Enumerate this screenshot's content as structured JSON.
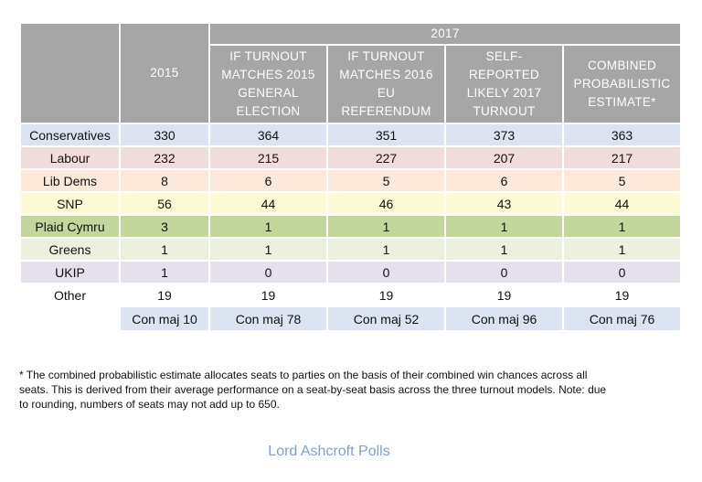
{
  "table": {
    "header": {
      "group": "2017",
      "columns": [
        "2015",
        "IF TURNOUT MATCHES 2015 GENERAL ELECTION",
        "IF TURNOUT MATCHES 2016 EU REFERENDUM",
        "SELF-REPORTED LIKELY 2017 TURNOUT",
        "COMBINED PROBABILISTIC ESTIMATE*"
      ]
    },
    "rows": [
      {
        "party": "Conservatives",
        "color": "#dbe4f0",
        "values": [
          330,
          364,
          351,
          373,
          363
        ]
      },
      {
        "party": "Labour",
        "color": "#f2dcdb",
        "values": [
          232,
          215,
          227,
          207,
          217
        ]
      },
      {
        "party": "Lib Dems",
        "color": "#fde9d9",
        "values": [
          8,
          6,
          5,
          6,
          5
        ]
      },
      {
        "party": "SNP",
        "color": "#fdfbd3",
        "values": [
          56,
          44,
          46,
          43,
          44
        ]
      },
      {
        "party": "Plaid Cymru",
        "color": "#c3d69b",
        "values": [
          3,
          1,
          1,
          1,
          1
        ]
      },
      {
        "party": "Greens",
        "color": "#ebf1de",
        "values": [
          1,
          1,
          1,
          1,
          1
        ]
      },
      {
        "party": "UKIP",
        "color": "#e5e0ec",
        "values": [
          1,
          0,
          0,
          0,
          0
        ]
      },
      {
        "party": "Other",
        "color": "#ffffff",
        "values": [
          19,
          19,
          19,
          19,
          19
        ]
      }
    ],
    "majority": [
      "Con maj 10",
      "Con maj 78",
      "Con maj 52",
      "Con maj 96",
      "Con maj 76"
    ]
  },
  "footnote": "* The combined probabilistic estimate allocates seats to parties on the basis of their combined win chances across all seats. This is derived from their average performance on a seat-by-seat basis across the three turnout models. Note: due to rounding, numbers of seats may not add up to 650.",
  "source": "Lord Ashcroft Polls"
}
